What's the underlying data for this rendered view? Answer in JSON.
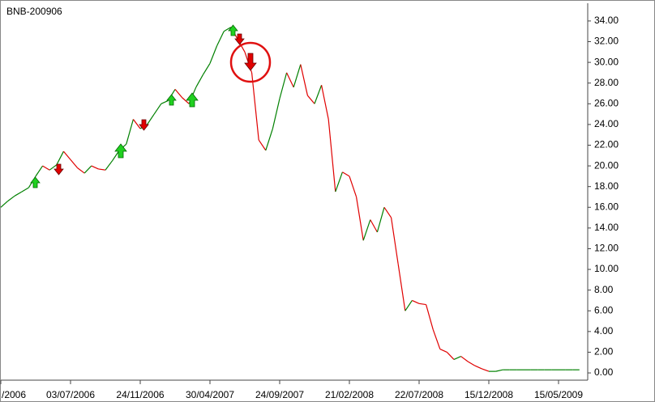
{
  "chart_data": {
    "type": "line",
    "title": "BNB-200906",
    "categories": [
      "/2006",
      null,
      null,
      null,
      null,
      null,
      null,
      null,
      null,
      null,
      "03/07/2006",
      null,
      null,
      null,
      null,
      null,
      null,
      null,
      null,
      null,
      "24/11/2006",
      null,
      null,
      null,
      null,
      null,
      null,
      null,
      null,
      null,
      "30/04/2007",
      null,
      null,
      null,
      null,
      null,
      null,
      null,
      null,
      null,
      "24/09/2007",
      null,
      null,
      null,
      null,
      null,
      null,
      null,
      null,
      null,
      "21/02/2008",
      null,
      null,
      null,
      null,
      null,
      null,
      null,
      null,
      null,
      "22/07/2008",
      null,
      null,
      null,
      null,
      null,
      null,
      null,
      null,
      null,
      "15/12/2008",
      null,
      null,
      null,
      null,
      null,
      null,
      null,
      null,
      null,
      "15/05/2009",
      null,
      null,
      null
    ],
    "series": [
      {
        "name": "BNB-200906",
        "up_color": "#008000",
        "down_color": "#e00000",
        "values": [
          16.0,
          16.6,
          17.1,
          17.5,
          17.9,
          19.0,
          20.0,
          19.6,
          20.1,
          21.4,
          20.6,
          19.8,
          19.3,
          20.0,
          19.7,
          19.6,
          20.5,
          21.5,
          22.1,
          24.5,
          23.6,
          24.0,
          25.0,
          26.0,
          26.3,
          27.4,
          26.6,
          26.0,
          27.6,
          28.8,
          29.9,
          31.6,
          33.0,
          33.4,
          32.2,
          31.0,
          29.0,
          22.5,
          21.5,
          23.6,
          26.5,
          29.0,
          27.6,
          29.8,
          26.8,
          26.0,
          27.8,
          24.5,
          17.5,
          19.4,
          19.0,
          17.0,
          12.8,
          14.8,
          13.6,
          16.0,
          15.0,
          10.5,
          6.0,
          7.0,
          6.7,
          6.6,
          4.2,
          2.3,
          2.0,
          1.3,
          1.6,
          1.1,
          0.7,
          0.4,
          0.15,
          0.15,
          0.3,
          0.3,
          0.3,
          0.3,
          0.3,
          0.3,
          0.3,
          0.3,
          0.3,
          0.3,
          0.3,
          0.3
        ]
      }
    ],
    "ylim": [
      -0.7,
      35.4
    ],
    "yticks": [
      {
        "value": 0,
        "label": "0.00"
      },
      {
        "value": 2,
        "label": "2.00"
      },
      {
        "value": 4,
        "label": "4.00"
      },
      {
        "value": 6,
        "label": "6.00"
      },
      {
        "value": 8,
        "label": "8.00"
      },
      {
        "value": 10,
        "label": "10.00"
      },
      {
        "value": 12,
        "label": "12.00"
      },
      {
        "value": 14,
        "label": "14.00"
      },
      {
        "value": 16,
        "label": "16.00"
      },
      {
        "value": 18,
        "label": "18.00"
      },
      {
        "value": 20,
        "label": "20.00"
      },
      {
        "value": 22,
        "label": "22.00"
      },
      {
        "value": 24,
        "label": "24.00"
      },
      {
        "value": 26,
        "label": "26.00"
      },
      {
        "value": 28,
        "label": "28.00"
      },
      {
        "value": 30,
        "label": "30.00"
      },
      {
        "value": 32,
        "label": "32.00"
      },
      {
        "value": 34,
        "label": "34.00"
      }
    ],
    "y_axis_side": "right",
    "grid": false
  }
}
